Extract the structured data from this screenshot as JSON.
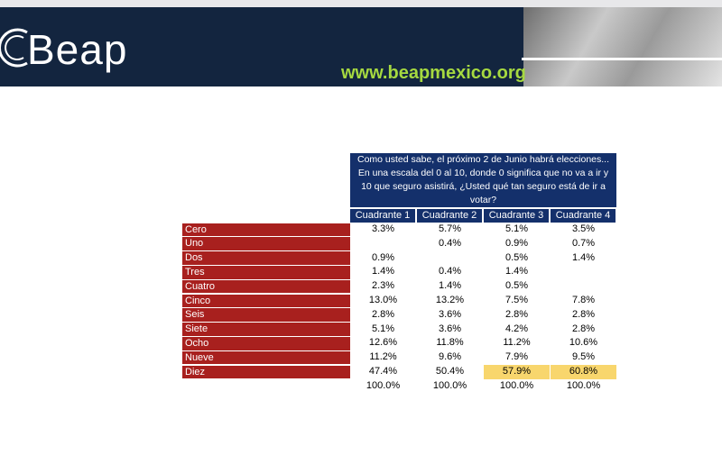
{
  "header": {
    "logo": "Beap",
    "url": "www.beapmexico.org"
  },
  "table": {
    "question": "Como usted sabe, el próximo 2 de Junio habrá elecciones... En una escala del 0 al 10, donde 0 significa que no va a ir y 10 que seguro asistirá, ¿Usted qué tan seguro está de ir a votar?",
    "columns": [
      "Cuadrante 1",
      "Cuadrante 2",
      "Cuadrante 3",
      "Cuadrante 4"
    ],
    "rows": [
      {
        "label": "Cero",
        "cells": [
          "3.3%",
          "5.7%",
          "5.1%",
          "3.5%"
        ]
      },
      {
        "label": "Uno",
        "cells": [
          null,
          "0.4%",
          "0.9%",
          "0.7%"
        ]
      },
      {
        "label": "Dos",
        "cells": [
          "0.9%",
          null,
          "0.5%",
          "1.4%"
        ]
      },
      {
        "label": "Tres",
        "cells": [
          "1.4%",
          "0.4%",
          "1.4%",
          null
        ]
      },
      {
        "label": "Cuatro",
        "cells": [
          "2.3%",
          "1.4%",
          "0.5%",
          null
        ]
      },
      {
        "label": "Cinco",
        "cells": [
          "13.0%",
          "13.2%",
          "7.5%",
          "7.8%"
        ]
      },
      {
        "label": "Seis",
        "cells": [
          "2.8%",
          "3.6%",
          "2.8%",
          "2.8%"
        ]
      },
      {
        "label": "Siete",
        "cells": [
          "5.1%",
          "3.6%",
          "4.2%",
          "2.8%"
        ]
      },
      {
        "label": "Ocho",
        "cells": [
          "12.6%",
          "11.8%",
          "11.2%",
          "10.6%"
        ]
      },
      {
        "label": "Nueve",
        "cells": [
          "11.2%",
          "9.6%",
          "7.9%",
          "9.5%"
        ]
      },
      {
        "label": "Diez",
        "cells": [
          "47.4%",
          "50.4%",
          "57.9%",
          "60.8%"
        ]
      }
    ],
    "totals": [
      "100.0%",
      "100.0%",
      "100.0%",
      "100.0%"
    ]
  }
}
